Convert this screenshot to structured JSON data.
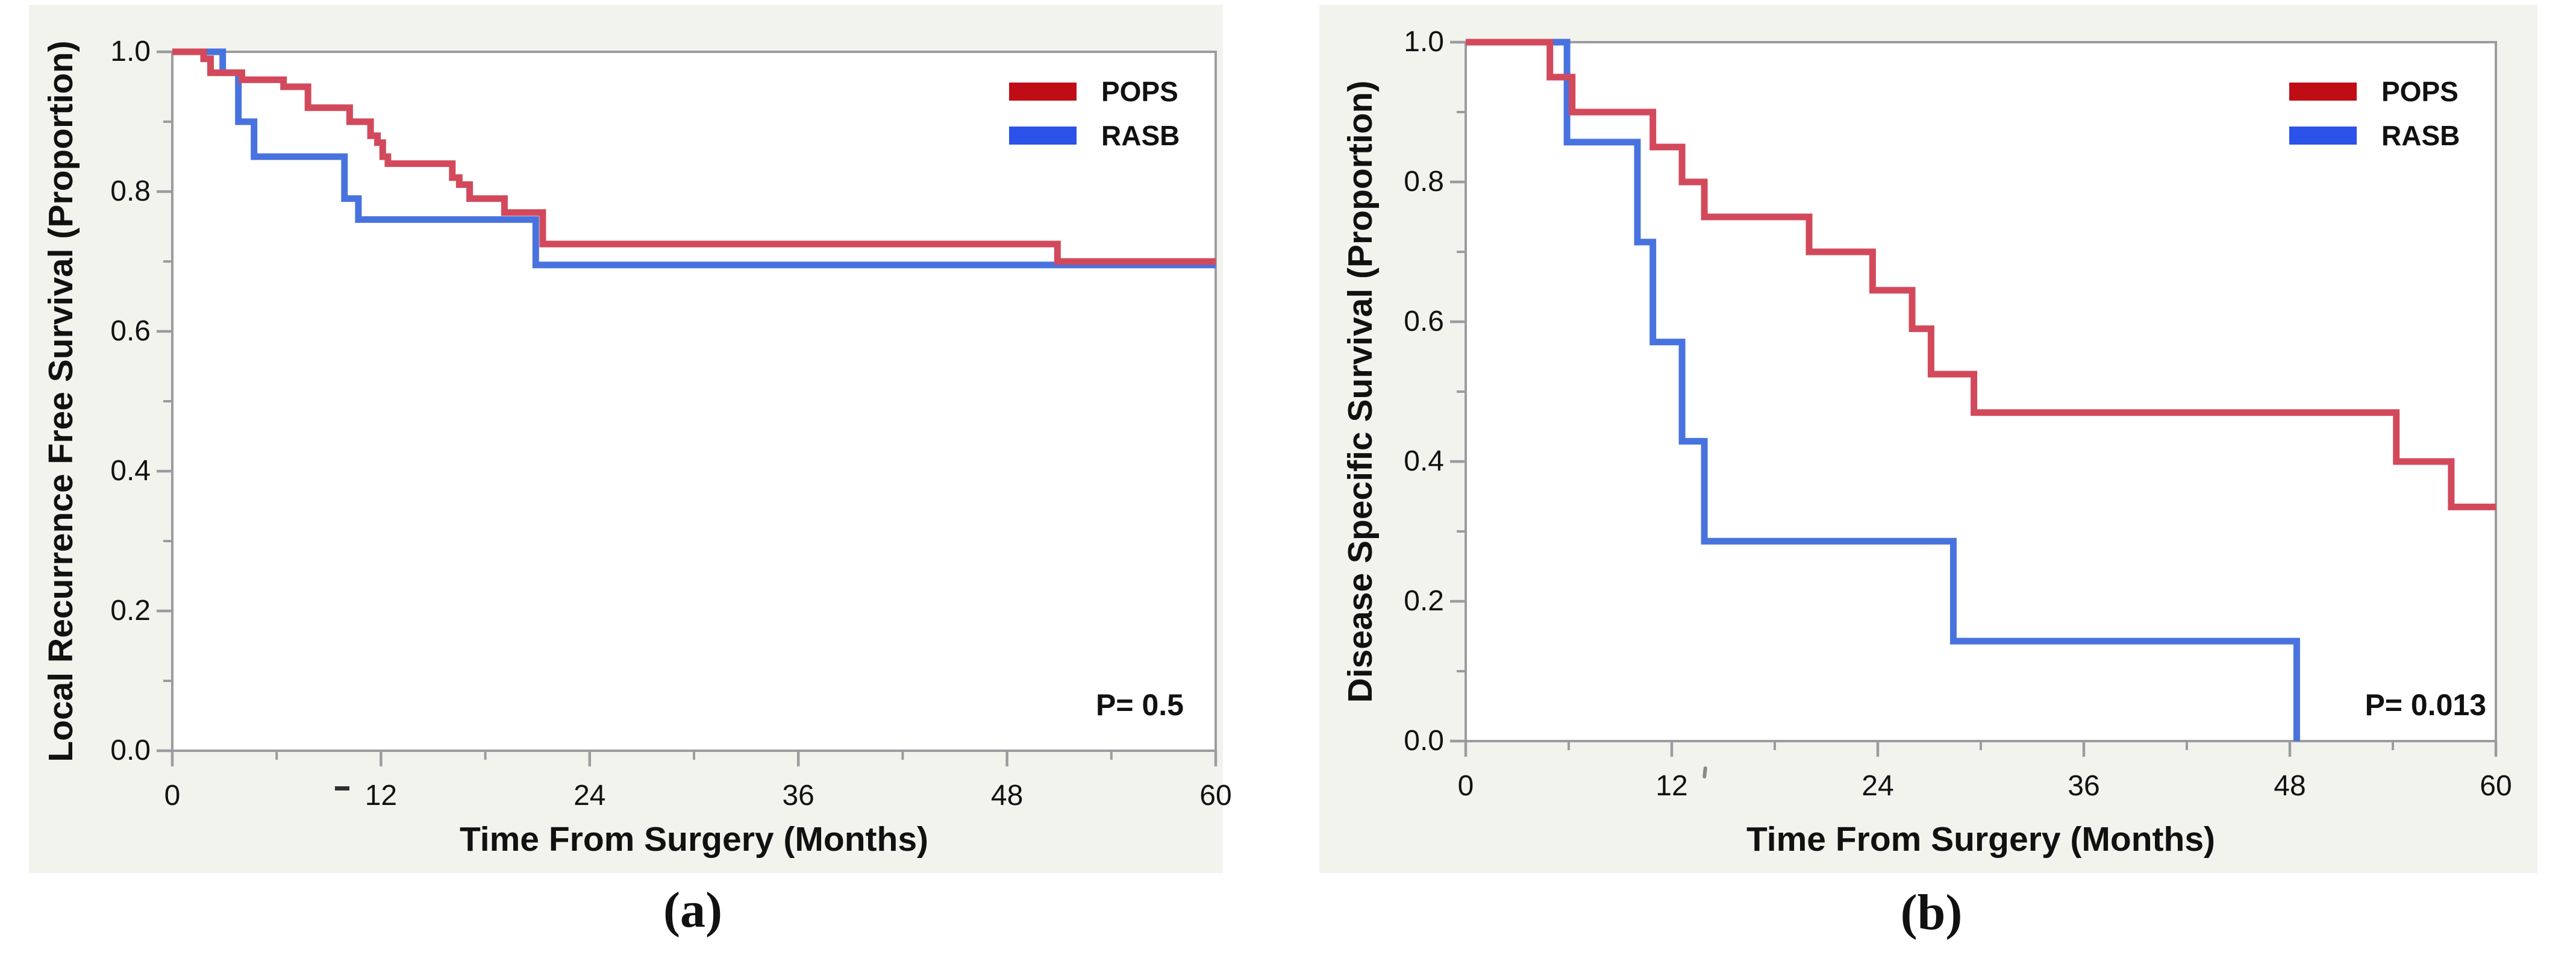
{
  "figure": {
    "background": "#ffffff",
    "canvas_color": "#f3f3ee",
    "axis_color": "#9b9ca0",
    "text_color": "#111111",
    "panels": [
      {
        "caption": "(a)",
        "y_axis_title": "Local Recurrence Free Survival (Proportion)",
        "x_axis_title": "Time From Surgery (Months)",
        "p_value": "P= 0.5",
        "x_tick_labels": [
          "0",
          "12",
          "24",
          "36",
          "48",
          "60"
        ],
        "y_tick_labels": [
          "1.0",
          "0.8",
          "0.6",
          "0.4",
          "0.2",
          "0.0"
        ],
        "legend": [
          {
            "label": "POPS",
            "swatch_color": "#c00d15"
          },
          {
            "label": "RASB",
            "swatch_color": "#2b52e9"
          }
        ]
      },
      {
        "caption": "(b)",
        "y_axis_title": "Disease Specific Survival (Proportion)",
        "x_axis_title": "Time From Surgery (Months)",
        "p_value": "P= 0.013",
        "x_tick_labels": [
          "0",
          "12",
          "24",
          "36",
          "48",
          "60"
        ],
        "y_tick_labels": [
          "1.0",
          "0.8",
          "0.6",
          "0.4",
          "0.2",
          "0.0"
        ],
        "legend": [
          {
            "label": "POPS",
            "swatch_color": "#c00d15"
          },
          {
            "label": "RASB",
            "swatch_color": "#2b52e9"
          }
        ]
      }
    ]
  },
  "chart_data": [
    {
      "type": "line",
      "subtype": "kaplan-meier-step",
      "title": "",
      "xlabel": "Time From Surgery (Months)",
      "ylabel": "Local Recurrence Free Survival (Proportion)",
      "xlim": [
        0,
        60
      ],
      "ylim": [
        0.0,
        1.0
      ],
      "x_ticks": [
        0,
        12,
        24,
        36,
        48,
        60
      ],
      "x_minor_ticks": [
        6,
        18,
        30,
        42,
        54
      ],
      "y_ticks": [
        1.0,
        0.8,
        0.6,
        0.4,
        0.2,
        0.0
      ],
      "y_minor_ticks": [
        0.9,
        0.7,
        0.5,
        0.3,
        0.1
      ],
      "annotation": "P= 0.5",
      "legend_position": "top-right",
      "grid": false,
      "series": [
        {
          "name": "POPS",
          "line_color": "#d3495c",
          "points": [
            [
              0,
              1.0
            ],
            [
              1.8,
              0.99
            ],
            [
              2.2,
              0.97
            ],
            [
              4.0,
              0.96
            ],
            [
              6.4,
              0.95
            ],
            [
              7.8,
              0.92
            ],
            [
              10.2,
              0.9
            ],
            [
              11.4,
              0.88
            ],
            [
              11.8,
              0.87
            ],
            [
              12.1,
              0.85
            ],
            [
              12.4,
              0.84
            ],
            [
              16.1,
              0.82
            ],
            [
              16.5,
              0.81
            ],
            [
              17.1,
              0.79
            ],
            [
              19.1,
              0.77
            ],
            [
              21.3,
              0.725
            ],
            [
              50.9,
              0.7
            ],
            [
              60,
              0.7
            ]
          ]
        },
        {
          "name": "RASB",
          "line_color": "#4873df",
          "points": [
            [
              0,
              1.0
            ],
            [
              2.9,
              0.97
            ],
            [
              3.8,
              0.9
            ],
            [
              4.7,
              0.85
            ],
            [
              9.9,
              0.79
            ],
            [
              10.7,
              0.76
            ],
            [
              20.9,
              0.695
            ],
            [
              60,
              0.695
            ]
          ]
        }
      ]
    },
    {
      "type": "line",
      "subtype": "kaplan-meier-step",
      "title": "",
      "xlabel": "Time From Surgery (Months)",
      "ylabel": "Disease Specific Survival (Proportion)",
      "xlim": [
        0,
        60
      ],
      "ylim": [
        0.0,
        1.0
      ],
      "x_ticks": [
        0,
        12,
        24,
        36,
        48,
        60
      ],
      "x_minor_ticks": [
        6,
        18,
        30,
        42,
        54
      ],
      "y_ticks": [
        1.0,
        0.8,
        0.6,
        0.4,
        0.2,
        0.0
      ],
      "y_minor_ticks": [
        0.9,
        0.7,
        0.5,
        0.3,
        0.1
      ],
      "annotation": "P= 0.013",
      "legend_position": "top-right",
      "grid": false,
      "series": [
        {
          "name": "POPS",
          "line_color": "#d3495c",
          "points": [
            [
              0,
              1.0
            ],
            [
              4.9,
              0.95
            ],
            [
              6.2,
              0.9
            ],
            [
              10.9,
              0.85
            ],
            [
              12.6,
              0.8
            ],
            [
              13.9,
              0.75
            ],
            [
              20.0,
              0.7
            ],
            [
              23.7,
              0.645
            ],
            [
              26.0,
              0.59
            ],
            [
              27.1,
              0.525
            ],
            [
              29.6,
              0.47
            ],
            [
              54.2,
              0.4
            ],
            [
              57.4,
              0.335
            ],
            [
              60,
              0.335
            ]
          ]
        },
        {
          "name": "RASB",
          "line_color": "#4873df",
          "points": [
            [
              0,
              1.0
            ],
            [
              5.9,
              0.857
            ],
            [
              10.0,
              0.714
            ],
            [
              10.9,
              0.571
            ],
            [
              12.6,
              0.429
            ],
            [
              13.9,
              0.286
            ],
            [
              28.4,
              0.143
            ],
            [
              48.4,
              0.0
            ]
          ]
        }
      ]
    }
  ]
}
